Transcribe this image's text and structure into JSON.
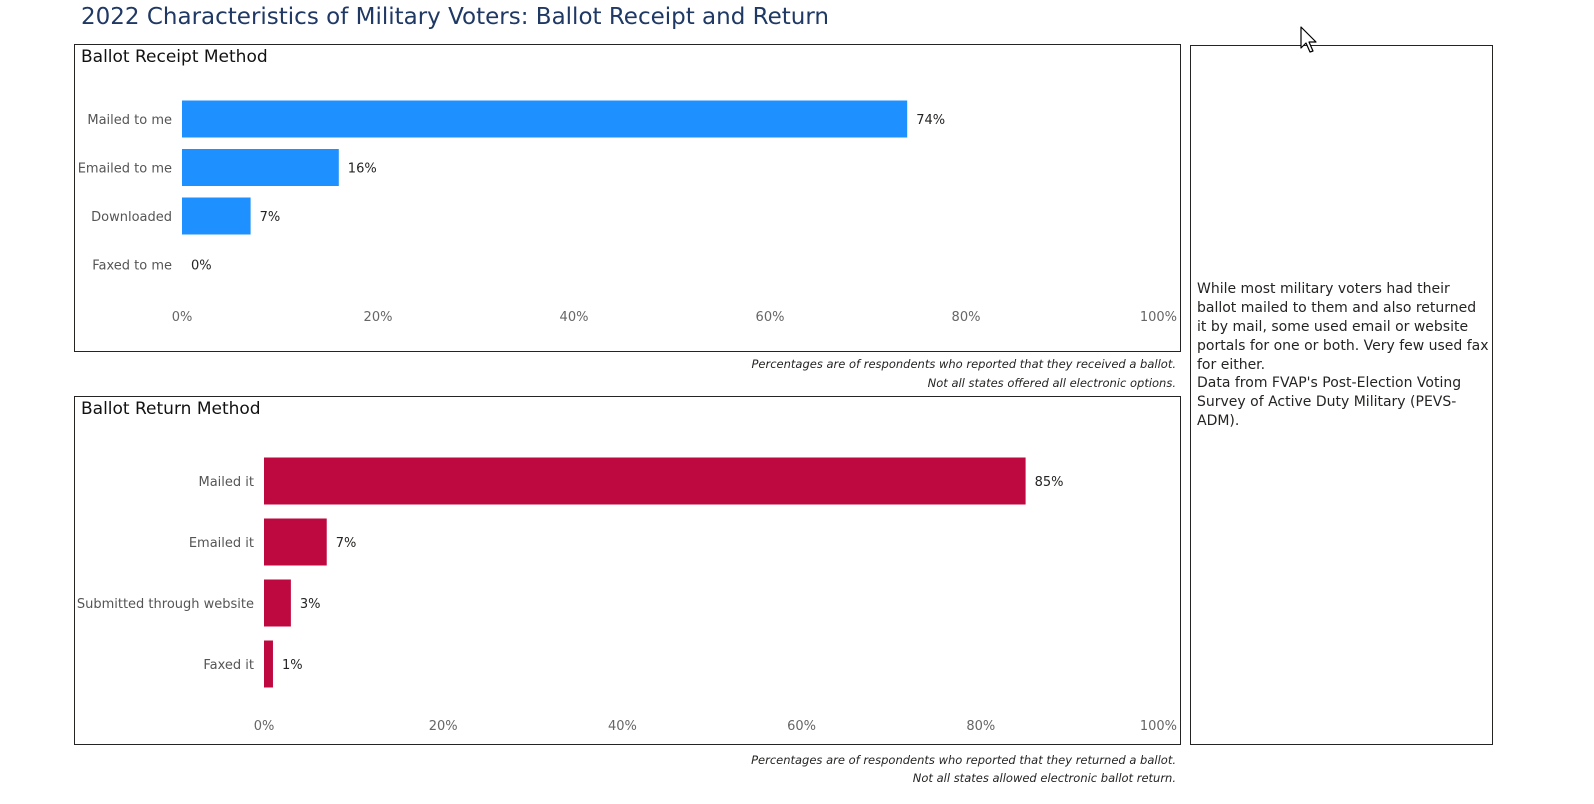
{
  "page": {
    "title": "2022 Characteristics of Military Voters: Ballot Receipt and Return"
  },
  "receipt_notes": {
    "line1": "Percentages are of respondents who reported that they received a ballot.",
    "line2": "Not all states offered all electronic options."
  },
  "return_notes": {
    "line1": "Percentages are of respondents who reported that they returned a ballot.",
    "line2": "Not all states allowed electronic ballot return."
  },
  "side_panel": {
    "paragraph1": "While most military voters had their ballot mailed to them and also returned it by mail, some used email or website portals for one or both. Very few used fax for either.",
    "paragraph2": "Data from FVAP's Post-Election Voting Survey of Active Duty Military (PEVS-ADM)."
  },
  "chart_data": [
    {
      "type": "bar",
      "orientation": "horizontal",
      "title": "Ballot Receipt Method",
      "categories": [
        "Mailed to me",
        "Emailed to me",
        "Downloaded",
        "Faxed to me"
      ],
      "values": [
        74,
        16,
        7,
        0
      ],
      "value_labels": [
        "74%",
        "16%",
        "7%",
        "0%"
      ],
      "xlim": [
        0,
        100
      ],
      "ticks": [
        0,
        20,
        40,
        60,
        80,
        100
      ],
      "tick_labels": [
        "0%",
        "20%",
        "40%",
        "60%",
        "80%",
        "100%"
      ],
      "color": "#1e90ff",
      "grid": false
    },
    {
      "type": "bar",
      "orientation": "horizontal",
      "title": "Ballot Return Method",
      "categories": [
        "Mailed it",
        "Emailed it",
        "Submitted through website",
        "Faxed it"
      ],
      "values": [
        85,
        7,
        3,
        1
      ],
      "value_labels": [
        "85%",
        "7%",
        "3%",
        "1%"
      ],
      "xlim": [
        0,
        100
      ],
      "ticks": [
        0,
        20,
        40,
        60,
        80,
        100
      ],
      "tick_labels": [
        "0%",
        "20%",
        "40%",
        "60%",
        "80%",
        "100%"
      ],
      "color": "#be0840",
      "grid": false
    }
  ]
}
